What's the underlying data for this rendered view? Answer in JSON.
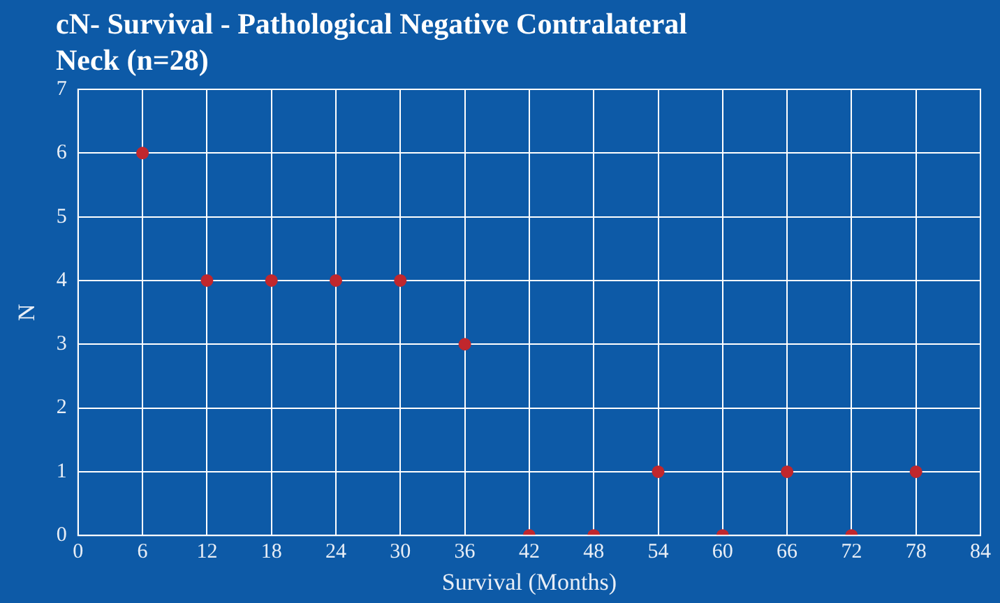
{
  "chart_data": {
    "type": "scatter",
    "title": "cN- Survival - Pathological  Negative Contralateral Neck (n=28)",
    "xlabel": "Survival (Months)",
    "ylabel": "N",
    "x": [
      6,
      12,
      18,
      24,
      30,
      36,
      42,
      48,
      54,
      60,
      66,
      72,
      78
    ],
    "series": [
      {
        "color": "#c0272d",
        "values": [
          6,
          4,
          4,
          4,
          4,
          3,
          0,
          0,
          1,
          0,
          1,
          0,
          1
        ]
      }
    ],
    "xlim": [
      0,
      84
    ],
    "xticks": [
      0,
      6,
      12,
      18,
      24,
      30,
      36,
      42,
      48,
      54,
      60,
      66,
      72,
      78,
      84
    ],
    "ylim": [
      0,
      7
    ],
    "yticks": [
      0,
      1,
      2,
      3,
      4,
      5,
      6,
      7
    ],
    "grid": true,
    "legend": false,
    "marker": "circle"
  }
}
